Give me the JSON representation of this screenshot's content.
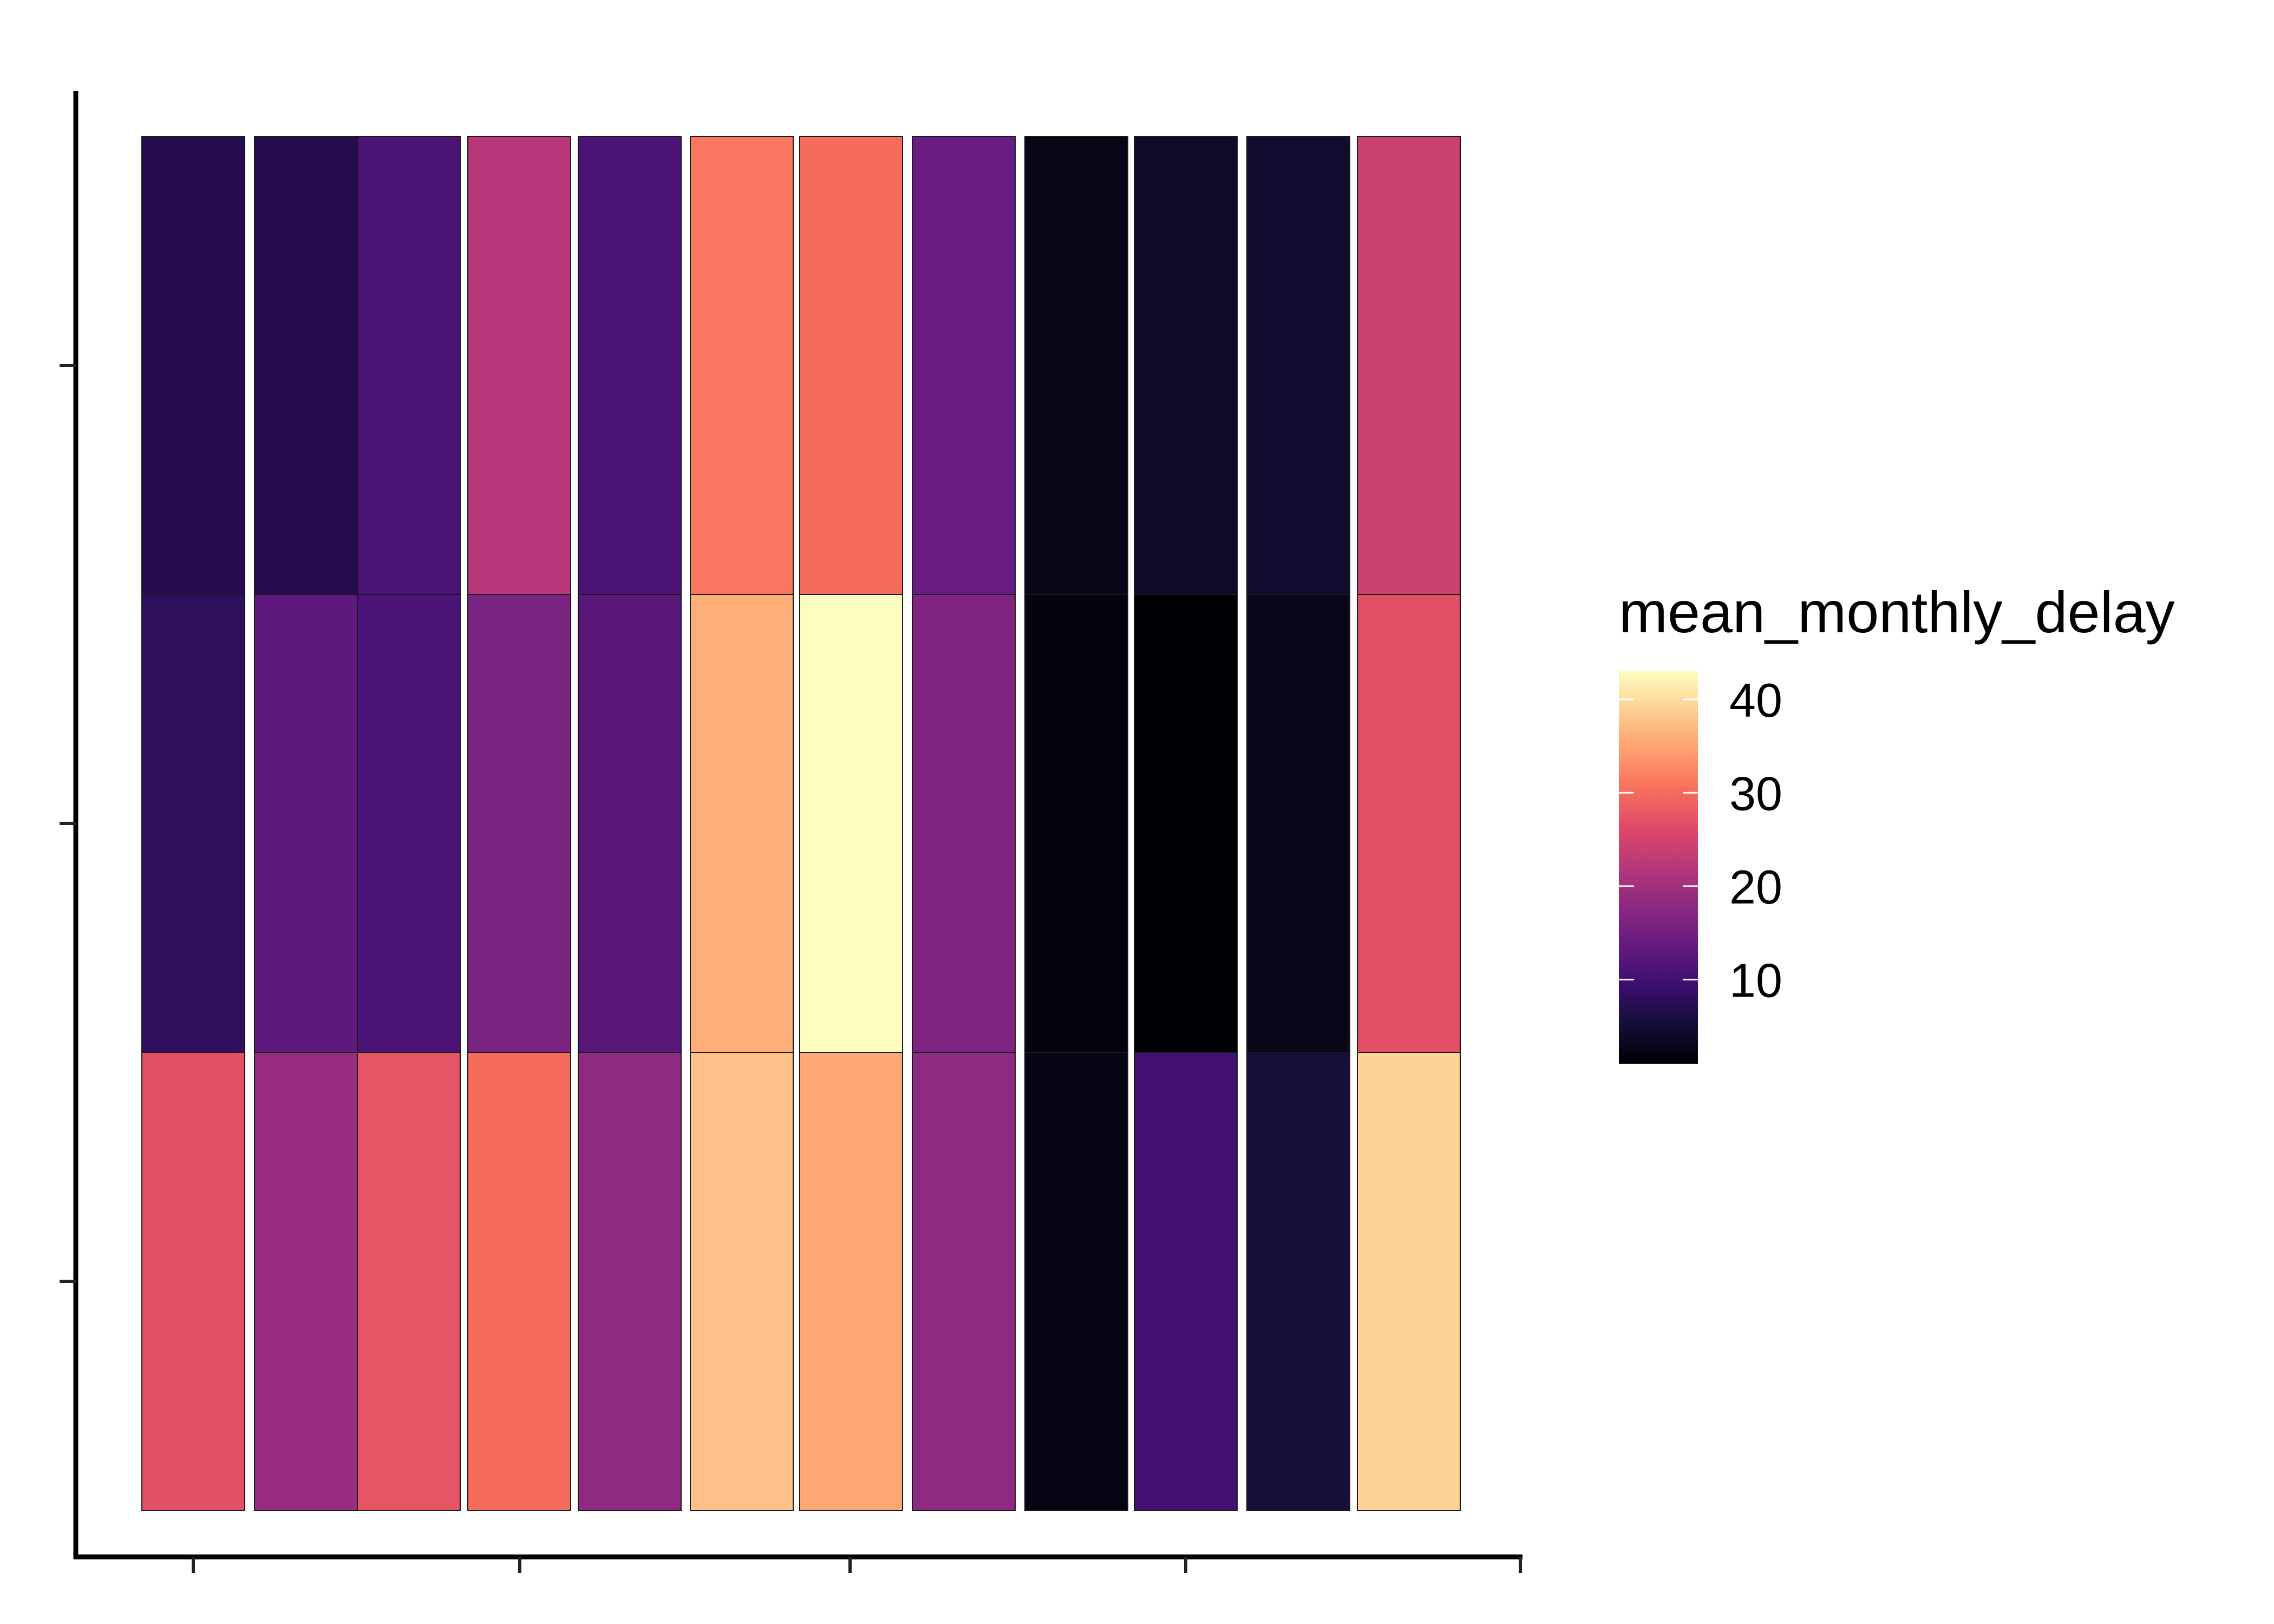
{
  "chart_data": {
    "type": "heatmap",
    "title": "",
    "xlabel": "",
    "ylabel": "",
    "x_tick_labels": [],
    "y_tick_labels": [],
    "colormap": "magma",
    "n_columns": 12,
    "n_rows": 3,
    "rows_top_to_bottom": [
      [
        7,
        7,
        11,
        22,
        11,
        31,
        30,
        14,
        2.5,
        4,
        4.5,
        24
      ],
      [
        8,
        13,
        11,
        16,
        12.5,
        36,
        43,
        16.5,
        1.8,
        1,
        2.8,
        27
      ],
      [
        27,
        19,
        27.5,
        30,
        18,
        37.5,
        35.5,
        18,
        2.2,
        10,
        5.5,
        39
      ]
    ],
    "legend": {
      "title": "mean_monthly_delay",
      "ticks": [
        10,
        20,
        30,
        40
      ],
      "tick_labels": [
        "10",
        "20",
        "30",
        "40"
      ],
      "range": [
        1,
        43
      ],
      "placement": "right"
    },
    "colors": {
      "magma_stops": [
        "#000004",
        "#140e36",
        "#3b0f70",
        "#641a80",
        "#8c2981",
        "#b73779",
        "#de4968",
        "#f7705c",
        "#fe9f6d",
        "#fecf92",
        "#fcfdbf"
      ],
      "axis": "#000000",
      "cell_border": "#1a1a1a"
    }
  }
}
